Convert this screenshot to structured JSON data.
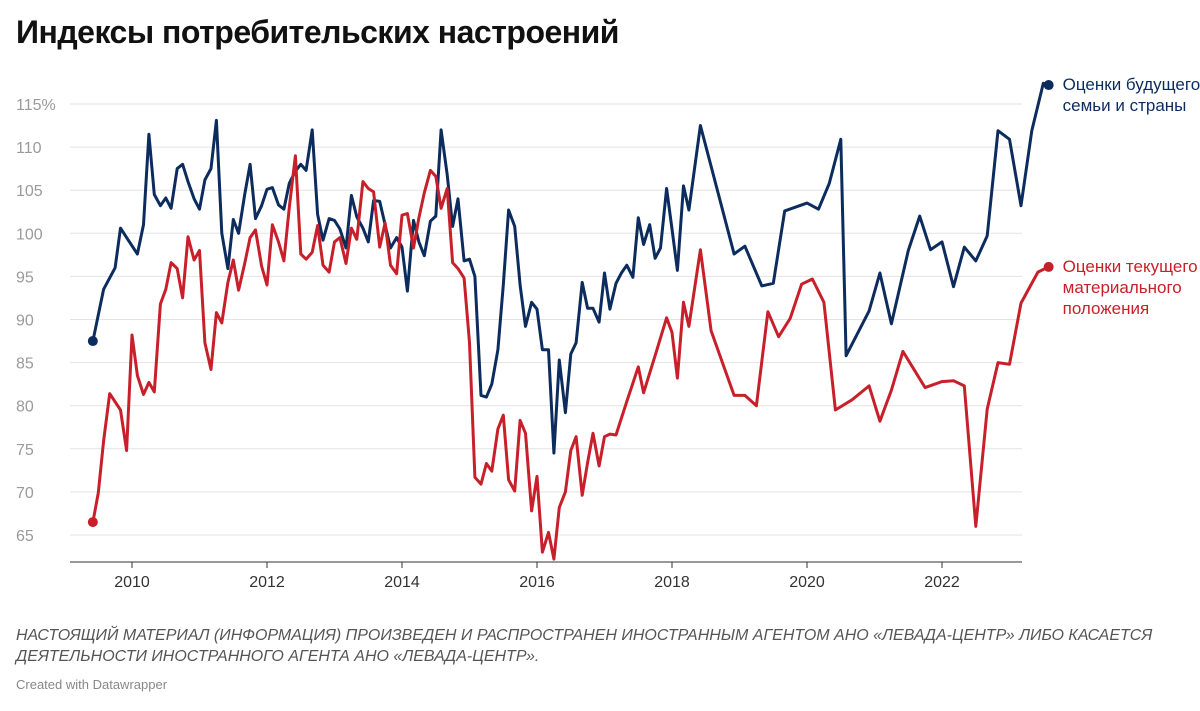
{
  "title": "Индексы потребительских настроений",
  "note": "НАСТОЯЩИЙ МАТЕРИАЛ (ИНФОРМАЦИЯ) ПРОИЗВЕДЕН И РАСПРОСТРАНЕН ИНОСТРАННЫМ АГЕНТОМ АНО «ЛЕВАДА-ЦЕНТР» ЛИБО КАСАЕТСЯ ДЕЯТЕЛЬНОСТИ ИНОСТРАННОГО АГЕНТА АНО «ЛЕВАДА-ЦЕНТР».",
  "credit": "Created with Datawrapper",
  "chart_data": {
    "type": "line",
    "title": "Индексы потребительских настроений",
    "xlabel": "",
    "ylabel": "",
    "ylim": [
      62,
      117
    ],
    "xlim": [
      2009.2,
      2023.4
    ],
    "y_ticks": [
      65,
      70,
      75,
      80,
      85,
      90,
      95,
      100,
      105,
      110,
      115
    ],
    "y_tick_labels": [
      "65",
      "70",
      "75",
      "80",
      "85",
      "90",
      "95",
      "100",
      "105",
      "110",
      "115%"
    ],
    "x_ticks": [
      2010,
      2012,
      2014,
      2016,
      2018,
      2020,
      2022
    ],
    "x_tick_labels": [
      "2010",
      "2012",
      "2014",
      "2016",
      "2018",
      "2020",
      "2022"
    ],
    "grid": true,
    "legend": "direct labels at line ends (right)",
    "series": [
      {
        "name": "Оценки будущего семьи и страны",
        "color": "#0d2c5e",
        "points": [
          [
            2009.42,
            87.5
          ],
          [
            2009.58,
            93.5
          ],
          [
            2009.75,
            96
          ],
          [
            2009.83,
            100.6
          ],
          [
            2009.92,
            99.5
          ],
          [
            2010.08,
            97.6
          ],
          [
            2010.17,
            101
          ],
          [
            2010.25,
            111.5
          ],
          [
            2010.33,
            104.5
          ],
          [
            2010.42,
            103.2
          ],
          [
            2010.5,
            104.1
          ],
          [
            2010.58,
            102.9
          ],
          [
            2010.67,
            107.5
          ],
          [
            2010.75,
            108
          ],
          [
            2010.83,
            106
          ],
          [
            2010.92,
            104
          ],
          [
            2011.0,
            102.8
          ],
          [
            2011.08,
            106.2
          ],
          [
            2011.17,
            107.5
          ],
          [
            2011.25,
            113.1
          ],
          [
            2011.33,
            100
          ],
          [
            2011.42,
            95.9
          ],
          [
            2011.5,
            101.6
          ],
          [
            2011.58,
            100
          ],
          [
            2011.67,
            104.5
          ],
          [
            2011.75,
            108
          ],
          [
            2011.83,
            101.7
          ],
          [
            2011.92,
            103.2
          ],
          [
            2012.0,
            105.1
          ],
          [
            2012.08,
            105.3
          ],
          [
            2012.17,
            103.3
          ],
          [
            2012.25,
            102.8
          ],
          [
            2012.33,
            105.8
          ],
          [
            2012.42,
            107.2
          ],
          [
            2012.5,
            108
          ],
          [
            2012.58,
            107.3
          ],
          [
            2012.67,
            112
          ],
          [
            2012.75,
            102.2
          ],
          [
            2012.83,
            99.2
          ],
          [
            2012.92,
            101.7
          ],
          [
            2013.0,
            101.5
          ],
          [
            2013.08,
            100.5
          ],
          [
            2013.17,
            98.3
          ],
          [
            2013.25,
            104.4
          ],
          [
            2013.33,
            101.9
          ],
          [
            2013.42,
            100.6
          ],
          [
            2013.5,
            99
          ],
          [
            2013.58,
            103.8
          ],
          [
            2013.67,
            103.7
          ],
          [
            2013.75,
            101
          ],
          [
            2013.83,
            98.3
          ],
          [
            2013.92,
            99.5
          ],
          [
            2014.0,
            98.4
          ],
          [
            2014.08,
            93.3
          ],
          [
            2014.17,
            101.5
          ],
          [
            2014.25,
            99
          ],
          [
            2014.33,
            97.4
          ],
          [
            2014.42,
            101.4
          ],
          [
            2014.5,
            102
          ],
          [
            2014.58,
            112
          ],
          [
            2014.67,
            106.8
          ],
          [
            2014.75,
            100.8
          ],
          [
            2014.83,
            104
          ],
          [
            2014.92,
            96.8
          ],
          [
            2015.0,
            97
          ],
          [
            2015.08,
            95
          ],
          [
            2015.17,
            81.2
          ],
          [
            2015.25,
            81
          ],
          [
            2015.33,
            82.5
          ],
          [
            2015.42,
            86.5
          ],
          [
            2015.5,
            94
          ],
          [
            2015.58,
            102.7
          ],
          [
            2015.67,
            100.8
          ],
          [
            2015.75,
            94
          ],
          [
            2015.83,
            89.2
          ],
          [
            2015.92,
            92
          ],
          [
            2016.0,
            91.2
          ],
          [
            2016.08,
            86.5
          ],
          [
            2016.17,
            86.5
          ],
          [
            2016.25,
            74.5
          ],
          [
            2016.33,
            85.3
          ],
          [
            2016.42,
            79.2
          ],
          [
            2016.5,
            86
          ],
          [
            2016.58,
            87.3
          ],
          [
            2016.67,
            94.3
          ],
          [
            2016.75,
            91.3
          ],
          [
            2016.83,
            91.3
          ],
          [
            2016.92,
            89.7
          ],
          [
            2017.0,
            95.4
          ],
          [
            2017.08,
            91.2
          ],
          [
            2017.17,
            94.2
          ],
          [
            2017.25,
            95.4
          ],
          [
            2017.33,
            96.3
          ],
          [
            2017.42,
            94.9
          ],
          [
            2017.5,
            101.8
          ],
          [
            2017.58,
            98.7
          ],
          [
            2017.67,
            101
          ],
          [
            2017.75,
            97.1
          ],
          [
            2017.83,
            98.3
          ],
          [
            2017.92,
            105.2
          ],
          [
            2018.0,
            100.5
          ],
          [
            2018.08,
            95.7
          ],
          [
            2018.17,
            105.5
          ],
          [
            2018.25,
            102.7
          ],
          [
            2018.42,
            112.5
          ],
          [
            2018.92,
            97.6
          ],
          [
            2019.08,
            98.5
          ],
          [
            2019.33,
            93.9
          ],
          [
            2019.5,
            94.2
          ],
          [
            2019.67,
            102.6
          ],
          [
            2020.0,
            103.5
          ],
          [
            2020.17,
            102.8
          ],
          [
            2020.33,
            105.8
          ],
          [
            2020.5,
            110.9
          ],
          [
            2020.58,
            85.8
          ],
          [
            2020.92,
            91
          ],
          [
            2021.08,
            95.4
          ],
          [
            2021.25,
            89.5
          ],
          [
            2021.5,
            98
          ],
          [
            2021.67,
            102
          ],
          [
            2021.83,
            98.1
          ],
          [
            2022.0,
            99
          ],
          [
            2022.17,
            93.8
          ],
          [
            2022.33,
            98.4
          ],
          [
            2022.5,
            96.8
          ],
          [
            2022.67,
            99.7
          ],
          [
            2022.83,
            111.9
          ],
          [
            2023.0,
            110.9
          ],
          [
            2023.17,
            103.2
          ],
          [
            2023.33,
            111.9
          ],
          [
            2023.5,
            117.4
          ],
          [
            2023.58,
            117.2
          ]
        ]
      },
      {
        "name": "Оценки текущего материального положения",
        "color": "#c8202a",
        "points": [
          [
            2009.42,
            66.5
          ],
          [
            2009.5,
            69.9
          ],
          [
            2009.58,
            75.9
          ],
          [
            2009.67,
            81.4
          ],
          [
            2009.83,
            79.5
          ],
          [
            2009.92,
            74.8
          ],
          [
            2010.0,
            88.2
          ],
          [
            2010.08,
            83.5
          ],
          [
            2010.17,
            81.3
          ],
          [
            2010.25,
            82.7
          ],
          [
            2010.33,
            81.6
          ],
          [
            2010.42,
            91.8
          ],
          [
            2010.5,
            93.5
          ],
          [
            2010.58,
            96.6
          ],
          [
            2010.67,
            95.9
          ],
          [
            2010.75,
            92.5
          ],
          [
            2010.83,
            99.6
          ],
          [
            2010.92,
            96.9
          ],
          [
            2011.0,
            98
          ],
          [
            2011.08,
            87.3
          ],
          [
            2011.17,
            84.2
          ],
          [
            2011.25,
            90.8
          ],
          [
            2011.33,
            89.6
          ],
          [
            2011.42,
            94.3
          ],
          [
            2011.5,
            96.9
          ],
          [
            2011.58,
            93.4
          ],
          [
            2011.67,
            96.5
          ],
          [
            2011.75,
            99.5
          ],
          [
            2011.83,
            100.4
          ],
          [
            2011.92,
            96.2
          ],
          [
            2012.0,
            94
          ],
          [
            2012.08,
            101
          ],
          [
            2012.17,
            99
          ],
          [
            2012.25,
            96.8
          ],
          [
            2012.33,
            103
          ],
          [
            2012.42,
            109
          ],
          [
            2012.5,
            97.6
          ],
          [
            2012.58,
            97
          ],
          [
            2012.67,
            97.8
          ],
          [
            2012.75,
            100.9
          ],
          [
            2012.83,
            96.3
          ],
          [
            2012.92,
            95.5
          ],
          [
            2013.0,
            99
          ],
          [
            2013.08,
            99.5
          ],
          [
            2013.17,
            96.5
          ],
          [
            2013.25,
            100.6
          ],
          [
            2013.33,
            99.3
          ],
          [
            2013.42,
            106
          ],
          [
            2013.5,
            105.2
          ],
          [
            2013.58,
            104.8
          ],
          [
            2013.67,
            98.4
          ],
          [
            2013.75,
            101.2
          ],
          [
            2013.83,
            96.3
          ],
          [
            2013.92,
            95.3
          ],
          [
            2014.0,
            102.1
          ],
          [
            2014.08,
            102.3
          ],
          [
            2014.17,
            98.3
          ],
          [
            2014.25,
            101.8
          ],
          [
            2014.33,
            104.7
          ],
          [
            2014.42,
            107.3
          ],
          [
            2014.5,
            106.6
          ],
          [
            2014.58,
            102.9
          ],
          [
            2014.67,
            105.2
          ],
          [
            2014.75,
            96.6
          ],
          [
            2014.83,
            95.9
          ],
          [
            2014.92,
            94.8
          ],
          [
            2015.0,
            87.3
          ],
          [
            2015.08,
            71.7
          ],
          [
            2015.17,
            70.9
          ],
          [
            2015.25,
            73.3
          ],
          [
            2015.33,
            72.4
          ],
          [
            2015.42,
            77.3
          ],
          [
            2015.5,
            78.9
          ],
          [
            2015.58,
            71.4
          ],
          [
            2015.67,
            70.1
          ],
          [
            2015.75,
            78.3
          ],
          [
            2015.83,
            76.8
          ],
          [
            2015.92,
            67.8
          ],
          [
            2016.0,
            71.8
          ],
          [
            2016.08,
            63
          ],
          [
            2016.17,
            65.3
          ],
          [
            2016.25,
            62.2
          ],
          [
            2016.33,
            68.2
          ],
          [
            2016.42,
            70
          ],
          [
            2016.5,
            74.8
          ],
          [
            2016.58,
            76.4
          ],
          [
            2016.67,
            69.6
          ],
          [
            2016.75,
            73.4
          ],
          [
            2016.83,
            76.8
          ],
          [
            2016.92,
            73
          ],
          [
            2017.0,
            76.4
          ],
          [
            2017.08,
            76.7
          ],
          [
            2017.17,
            76.6
          ],
          [
            2017.33,
            80.5
          ],
          [
            2017.5,
            84.5
          ],
          [
            2017.58,
            81.5
          ],
          [
            2017.75,
            85.8
          ],
          [
            2017.92,
            90.2
          ],
          [
            2018.0,
            88.5
          ],
          [
            2018.08,
            83.2
          ],
          [
            2018.17,
            92
          ],
          [
            2018.25,
            89.2
          ],
          [
            2018.42,
            98.1
          ],
          [
            2018.58,
            88.7
          ],
          [
            2018.92,
            81.2
          ],
          [
            2019.08,
            81.2
          ],
          [
            2019.25,
            80
          ],
          [
            2019.42,
            90.9
          ],
          [
            2019.58,
            88
          ],
          [
            2019.75,
            90.1
          ],
          [
            2019.92,
            94.1
          ],
          [
            2020.08,
            94.7
          ],
          [
            2020.25,
            92
          ],
          [
            2020.42,
            79.5
          ],
          [
            2020.67,
            80.7
          ],
          [
            2020.92,
            82.3
          ],
          [
            2021.08,
            78.2
          ],
          [
            2021.25,
            81.8
          ],
          [
            2021.42,
            86.3
          ],
          [
            2021.75,
            82.1
          ],
          [
            2022.0,
            82.8
          ],
          [
            2022.17,
            82.9
          ],
          [
            2022.33,
            82.3
          ],
          [
            2022.5,
            66
          ],
          [
            2022.67,
            79.6
          ],
          [
            2022.83,
            85
          ],
          [
            2023.0,
            84.8
          ],
          [
            2023.17,
            91.9
          ],
          [
            2023.42,
            95.5
          ],
          [
            2023.58,
            96.1
          ]
        ]
      }
    ]
  }
}
